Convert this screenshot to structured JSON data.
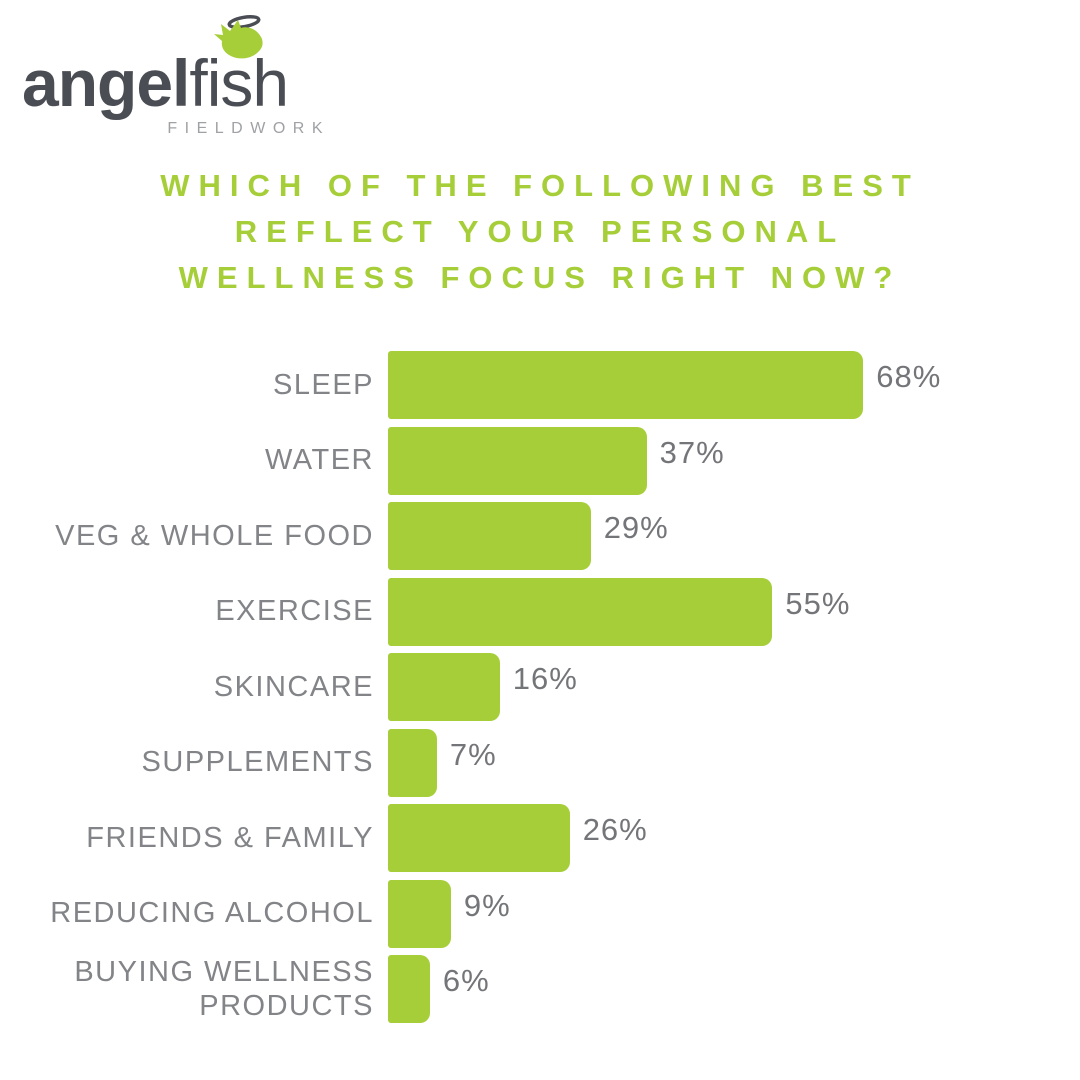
{
  "logo": {
    "brand_bold": "angel",
    "brand_light": "fish",
    "tagline": "FIELDWORK"
  },
  "title": {
    "lines": [
      "WHICH OF THE FOLLOWING BEST",
      "REFLECT YOUR PERSONAL",
      "WELLNESS FOCUS RIGHT NOW?"
    ]
  },
  "colors": {
    "bar_green": "#a6ce39",
    "title_green": "#a6ce39",
    "category_gray": "#828488",
    "value_gray": "#747579",
    "logo_charcoal": "#4a4d53",
    "tagline_gray": "#9fa1a4"
  },
  "chart_data": {
    "type": "bar",
    "orientation": "horizontal",
    "title": "WHICH OF THE FOLLOWING BEST REFLECT YOUR PERSONAL WELLNESS FOCUS RIGHT NOW?",
    "categories": [
      "SLEEP",
      "WATER",
      "VEG & WHOLE FOOD",
      "EXERCISE",
      "SKINCARE",
      "SUPPLEMENTS",
      "FRIENDS & FAMILY",
      "REDUCING ALCOHOL",
      "BUYING WELLNESS PRODUCTS"
    ],
    "values": [
      68,
      37,
      29,
      55,
      16,
      7,
      26,
      9,
      6
    ],
    "value_labels": [
      "68%",
      "37%",
      "29%",
      "55%",
      "16%",
      "7%",
      "26%",
      "9%",
      "6%"
    ],
    "xlabel": "",
    "ylabel": "",
    "xlim": [
      0,
      100
    ],
    "grid": false,
    "legend": false,
    "bar_color": "#a6ce39",
    "value_label_position": "outside-right"
  }
}
